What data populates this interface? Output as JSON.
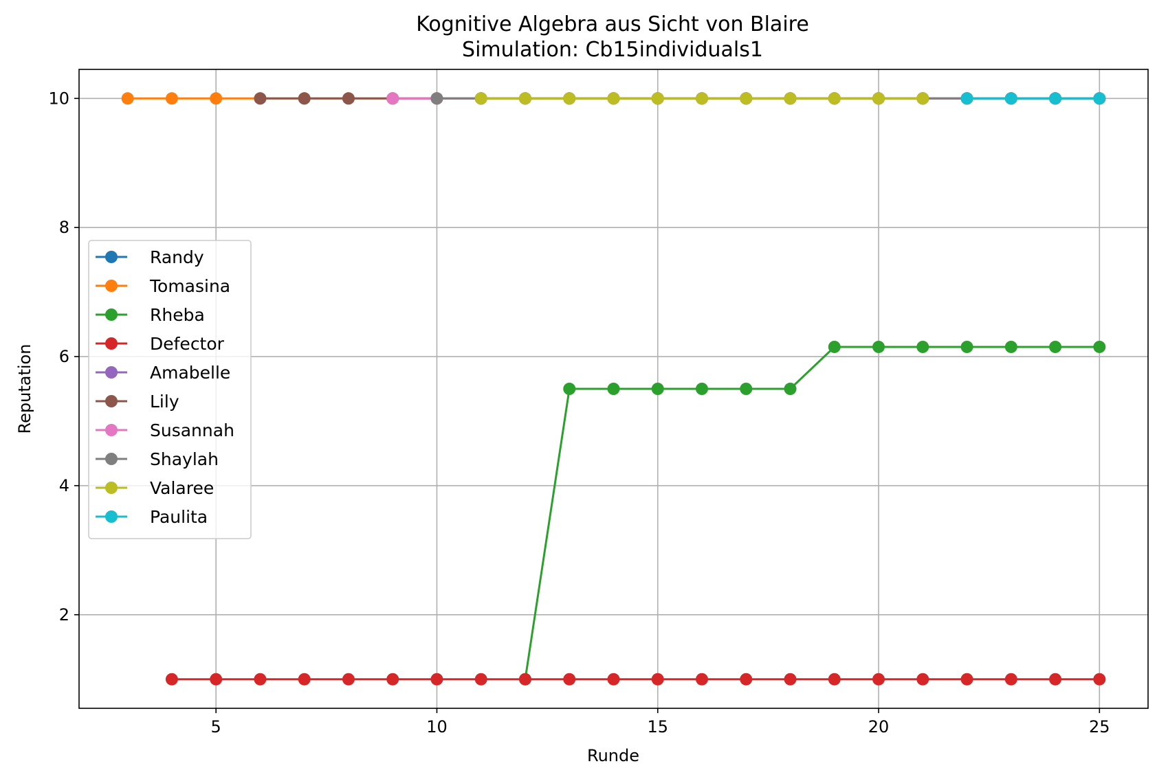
{
  "chart_data": {
    "type": "line",
    "title": "Kognitive Algebra aus Sicht von Blaire",
    "subtitle": "Simulation: Cb15individuals1",
    "xlabel": "Runde",
    "ylabel": "Reputation",
    "xlim": [
      1.9,
      26.1
    ],
    "ylim": [
      0.55,
      10.45
    ],
    "xticks": [
      5,
      10,
      15,
      20,
      25
    ],
    "yticks": [
      2,
      4,
      6,
      8,
      10
    ],
    "grid": true,
    "legend_position": "center-left",
    "series": [
      {
        "name": "Randy",
        "color": "#1f77b4",
        "x": [],
        "y": []
      },
      {
        "name": "Tomasina",
        "color": "#ff7f0e",
        "x": [
          3,
          4,
          5,
          6,
          7,
          8,
          9,
          10,
          11,
          12,
          13,
          14,
          15,
          16,
          17,
          18,
          19,
          20,
          21,
          22,
          23,
          24,
          25
        ],
        "y": [
          10,
          10,
          10,
          10,
          10,
          10,
          10,
          10,
          10,
          10,
          10,
          10,
          10,
          10,
          10,
          10,
          10,
          10,
          10,
          10,
          10,
          10,
          10
        ]
      },
      {
        "name": "Rheba",
        "color": "#2ca02c",
        "x": [
          12,
          13,
          14,
          15,
          16,
          17,
          18,
          19,
          20,
          21,
          22,
          23,
          24,
          25
        ],
        "y": [
          1,
          5.5,
          5.5,
          5.5,
          5.5,
          5.5,
          5.5,
          6.15,
          6.15,
          6.15,
          6.15,
          6.15,
          6.15,
          6.15
        ]
      },
      {
        "name": "Defector",
        "color": "#d62728",
        "x": [
          4,
          5,
          6,
          7,
          8,
          9,
          10,
          11,
          12,
          13,
          14,
          15,
          16,
          17,
          18,
          19,
          20,
          21,
          22,
          23,
          24,
          25
        ],
        "y": [
          1,
          1,
          1,
          1,
          1,
          1,
          1,
          1,
          1,
          1,
          1,
          1,
          1,
          1,
          1,
          1,
          1,
          1,
          1,
          1,
          1,
          1
        ]
      },
      {
        "name": "Amabelle",
        "color": "#9467bd",
        "x": [],
        "y": []
      },
      {
        "name": "Lily",
        "color": "#8c564b",
        "x": [
          6,
          7,
          8,
          9,
          10,
          11,
          12,
          13,
          14,
          15,
          16,
          17,
          18,
          19,
          20,
          21,
          22,
          23,
          24,
          25
        ],
        "y": [
          10,
          10,
          10,
          10,
          10,
          10,
          10,
          10,
          10,
          10,
          10,
          10,
          10,
          10,
          10,
          10,
          10,
          10,
          10,
          10
        ]
      },
      {
        "name": "Susannah",
        "color": "#e377c2",
        "x": [
          9,
          10,
          11,
          12,
          13,
          14,
          15,
          16,
          17,
          18,
          19,
          20,
          21,
          22,
          23,
          24,
          25
        ],
        "y": [
          10,
          10,
          10,
          10,
          10,
          10,
          10,
          10,
          10,
          10,
          10,
          10,
          10,
          10,
          10,
          10,
          10
        ]
      },
      {
        "name": "Shaylah",
        "color": "#7f7f7f",
        "x": [
          10,
          11,
          12,
          13,
          14,
          15,
          16,
          17,
          18,
          19,
          20,
          21,
          22,
          23,
          24,
          25
        ],
        "y": [
          10,
          10,
          10,
          10,
          10,
          10,
          10,
          10,
          10,
          10,
          10,
          10,
          10,
          10,
          10,
          10
        ]
      },
      {
        "name": "Valaree",
        "color": "#bcbd22",
        "x": [
          11,
          12,
          13,
          14,
          15,
          16,
          17,
          18,
          19,
          20,
          21
        ],
        "y": [
          10,
          10,
          10,
          10,
          10,
          10,
          10,
          10,
          10,
          10,
          10
        ]
      },
      {
        "name": "Paulita",
        "color": "#17becf",
        "x": [
          22,
          23,
          24,
          25
        ],
        "y": [
          10,
          10,
          10,
          10
        ]
      }
    ]
  }
}
